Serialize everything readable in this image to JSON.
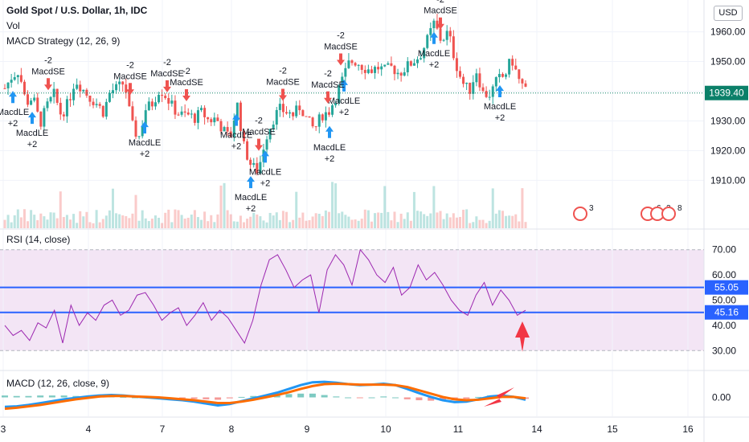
{
  "header": {
    "symbol_title": "Gold Spot / U.S. Dollar, 1h, IDC",
    "vol_label": "Vol",
    "strategy_label": "MACD Strategy (12, 26, 9)",
    "rsi_label": "RSI (14, close)",
    "macd_label": "MACD (12, 26, close, 9)",
    "currency_button": "USD"
  },
  "colors": {
    "up": "#26a69a",
    "down": "#ef5350",
    "rsi_line": "#9c27b0",
    "rsi_band": "#f3e5f5",
    "hline": "#2962ff",
    "macd_line": "#2196f3",
    "signal_line": "#ff6d00",
    "annotation_arrow": "#f23645",
    "price_tag": "#0b8069"
  },
  "chart_data": [
    {
      "type": "candlestick",
      "title": "Gold Spot / U.S. Dollar, 1h, IDC",
      "x_ticks": [
        "3",
        "4",
        "7",
        "8",
        "9",
        "10",
        "11",
        "14",
        "15",
        "16"
      ],
      "price_ticks": [
        1910,
        1920,
        1930,
        1940,
        1950,
        1960
      ],
      "ylim": [
        1902,
        1968
      ],
      "current_price": "1939.40",
      "current_price_value": 1939.4,
      "price_path": [
        1941,
        1945,
        1947,
        1936,
        1938,
        1929,
        1935,
        1939,
        1932,
        1936,
        1944,
        1941,
        1938,
        1936,
        1933,
        1940,
        1941,
        1943,
        1929,
        1924,
        1934,
        1936,
        1941,
        1938,
        1934,
        1932,
        1932,
        1931,
        1933,
        1930,
        1931,
        1927,
        1924,
        1936,
        1921,
        1915,
        1913,
        1924,
        1930,
        1934,
        1933,
        1932,
        1935,
        1930,
        1927,
        1932,
        1933,
        1938,
        1944,
        1950,
        1950,
        1948,
        1947,
        1948,
        1947,
        1948,
        1946,
        1948,
        1950,
        1952,
        1957,
        1963,
        1957,
        1960,
        1950,
        1943,
        1940,
        1947,
        1939,
        1939,
        1944,
        1945,
        1951,
        1944,
        1940
      ],
      "strategy_signals": [
        {
          "type": "MacdLE",
          "value": "+2"
        },
        {
          "type": "MacdSE",
          "value": "-2"
        },
        {
          "type": "MacdLE",
          "value": "+2"
        },
        {
          "type": "MacdSE",
          "value": "-2"
        },
        {
          "type": "MacdLE",
          "value": "+2"
        },
        {
          "type": "MacdSE",
          "value": "-2"
        },
        {
          "type": "MacdSE",
          "value": "-2"
        },
        {
          "type": "MacdLE",
          "value": "+2"
        },
        {
          "type": "MacdLE",
          "value": "+2"
        },
        {
          "type": "MacdSE",
          "value": "-2"
        },
        {
          "type": "MacdLE",
          "value": "+2"
        },
        {
          "type": "MacdSE",
          "value": "-2"
        },
        {
          "type": "MacdLE",
          "value": "+2"
        },
        {
          "type": "MacdLE",
          "value": "+2"
        },
        {
          "type": "MacdSE",
          "value": "-2"
        },
        {
          "type": "MacdSE",
          "value": "-2"
        },
        {
          "type": "MacdLE",
          "value": "+2"
        },
        {
          "type": "MacdSE",
          "value": "-2"
        },
        {
          "type": "MacdLE",
          "value": "+2"
        }
      ],
      "event_badges": [
        "3",
        "6",
        "2",
        "8"
      ]
    },
    {
      "type": "line",
      "title": "RSI (14, close)",
      "y_ticks": [
        30.0,
        40.0,
        50.0,
        60.0,
        70.0
      ],
      "ylim": [
        25,
        75
      ],
      "band": [
        30,
        70
      ],
      "horizontal_lines": [
        {
          "label": "55.05",
          "value": 55.05
        },
        {
          "label": "45.16",
          "value": 45.16
        }
      ],
      "series": [
        {
          "values": [
            40,
            36,
            38,
            34,
            41,
            39,
            46,
            33,
            48,
            40,
            45,
            42,
            48,
            50,
            44,
            46,
            52,
            53,
            48,
            42,
            45,
            47,
            40,
            44,
            49,
            42,
            46,
            43,
            38,
            33,
            42,
            56,
            66,
            68,
            62,
            55,
            58,
            60,
            45,
            62,
            68,
            64,
            56,
            70,
            66,
            60,
            57,
            63,
            52,
            55,
            64,
            58,
            61,
            56,
            50,
            46,
            44,
            52,
            57,
            48,
            54,
            50,
            44,
            46
          ]
        }
      ]
    },
    {
      "type": "line",
      "title": "MACD (12, 26, close, 9)",
      "y_ticks": [
        0.0
      ],
      "ylim": [
        -4,
        4
      ],
      "series": [
        {
          "name": "MACD",
          "values": [
            -2,
            -1.9,
            -1.6,
            -1.2,
            -0.8,
            -0.4,
            -0.1,
            0.2,
            0.4,
            0.5,
            0.4,
            0.2,
            0,
            -0.2,
            -0.4,
            -0.6,
            -0.9,
            -1.3,
            -1.7,
            -1.4,
            -0.8,
            -0.2,
            0.4,
            1,
            1.8,
            2.6,
            3.2,
            3.3,
            3.1,
            2.8,
            2.6,
            2.7,
            2.9,
            2.6,
            1.8,
            0.9,
            0.1,
            -0.6,
            -1,
            -0.9,
            -0.4,
            0.2,
            0.4,
            0.1,
            -0.5
          ]
        },
        {
          "name": "Signal",
          "values": [
            -2.4,
            -2.2,
            -1.9,
            -1.6,
            -1.2,
            -0.8,
            -0.4,
            -0.1,
            0.2,
            0.3,
            0.3,
            0.2,
            0.1,
            0,
            -0.2,
            -0.4,
            -0.6,
            -0.9,
            -1.2,
            -1.2,
            -0.9,
            -0.5,
            0,
            0.5,
            1.1,
            1.8,
            2.4,
            2.8,
            2.9,
            2.8,
            2.7,
            2.7,
            2.7,
            2.6,
            2.2,
            1.5,
            0.8,
            0.1,
            -0.4,
            -0.6,
            -0.5,
            -0.2,
            0.1,
            0.1,
            -0.2
          ]
        }
      ],
      "histogram": [
        0.4,
        0.3,
        0.3,
        0.4,
        0.4,
        0.4,
        0.3,
        0.3,
        0.2,
        0.2,
        0.1,
        0,
        -0.1,
        -0.2,
        -0.2,
        -0.2,
        -0.3,
        -0.4,
        -0.5,
        -0.2,
        0.1,
        0.3,
        0.4,
        0.5,
        0.7,
        0.8,
        0.8,
        0.5,
        0.2,
        0,
        -0.1,
        0,
        0.2,
        0,
        -0.4,
        -0.6,
        -0.7,
        -0.7,
        -0.6,
        -0.3,
        0.1,
        0.4,
        0.3,
        0,
        -0.3
      ]
    }
  ]
}
